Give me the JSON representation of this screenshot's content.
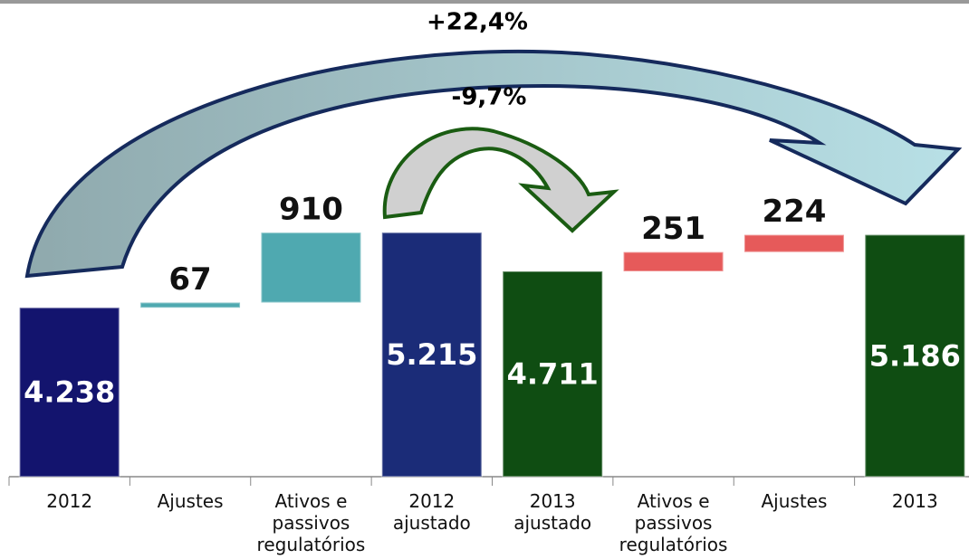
{
  "chart_data": {
    "type": "waterfall",
    "categories": [
      "2012",
      "Ajustes",
      "Ativos e passivos regulatórios",
      "2012 ajustado",
      "2013 ajustado",
      "Ativos e passivos regulatórios",
      "Ajustes",
      "2013"
    ],
    "values": [
      4238,
      67,
      910,
      5215,
      4711,
      251,
      224,
      5186
    ],
    "value_labels": [
      "4.238",
      "67",
      "910",
      "5.215",
      "4.711",
      "251",
      "224",
      "5.186"
    ],
    "measure": [
      "absolute",
      "relative",
      "relative",
      "absolute",
      "absolute",
      "relative",
      "relative",
      "absolute"
    ],
    "colors": [
      "#13146e",
      "#4fa9b0",
      "#4fa9b0",
      "#1b2c78",
      "#0f4d12",
      "#e65a5a",
      "#e65a5a",
      "#0f4d12"
    ],
    "ylim": [
      2040,
      7770
    ],
    "annotations": [
      "+22,4%",
      "-9,7%"
    ]
  }
}
